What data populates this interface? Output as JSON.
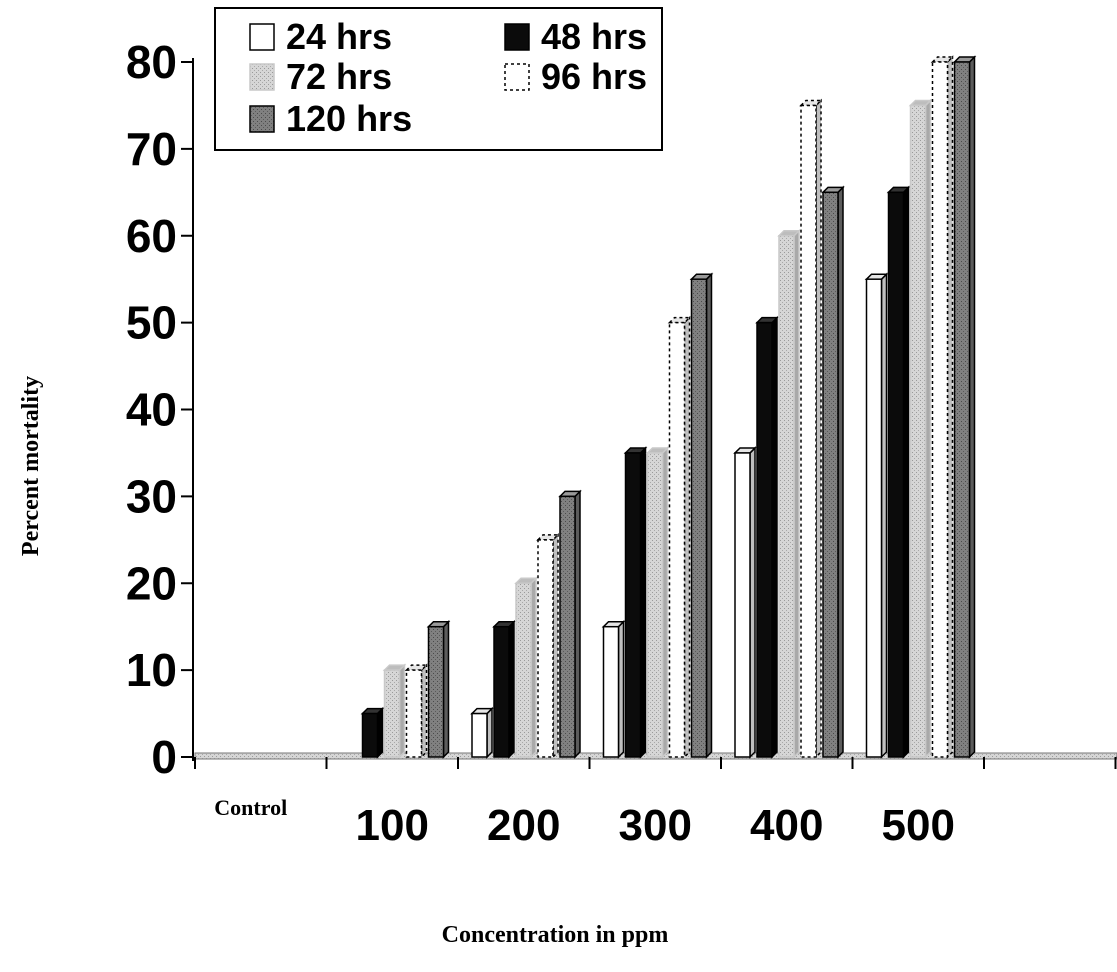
{
  "chart_data": {
    "type": "bar",
    "categories": [
      "Control",
      "100",
      "200",
      "300",
      "400",
      "500"
    ],
    "series": [
      {
        "name": "24 hrs",
        "values": [
          0,
          0,
          5,
          15,
          35,
          55
        ]
      },
      {
        "name": "48 hrs",
        "values": [
          0,
          5,
          15,
          35,
          50,
          65
        ]
      },
      {
        "name": "72 hrs",
        "values": [
          0,
          10,
          20,
          35,
          60,
          75
        ]
      },
      {
        "name": "96 hrs",
        "values": [
          0,
          10,
          25,
          50,
          75,
          80
        ]
      },
      {
        "name": "120 hrs",
        "values": [
          0,
          15,
          30,
          55,
          65,
          80
        ]
      }
    ],
    "xlabel": "Concentration in ppm",
    "ylabel": "Percent mortality",
    "ylim": [
      0,
      80
    ],
    "yticks": [
      0,
      10,
      20,
      30,
      40,
      50,
      60,
      70,
      80
    ],
    "legend_position": "top-left",
    "grid": false,
    "series_styles": [
      {
        "fill": "#ffffff",
        "stroke": "#000000",
        "dashed": false
      },
      {
        "fill": "#0b0b0b",
        "stroke": "#000000",
        "dashed": false
      },
      {
        "fill": "#c9c9c9",
        "stroke": "#c9c9c9",
        "dashed": false
      },
      {
        "fill": "#ffffff",
        "stroke": "#000000",
        "dashed": true
      },
      {
        "fill": "#7d7d7d",
        "stroke": "#000000",
        "dashed": false
      }
    ]
  }
}
